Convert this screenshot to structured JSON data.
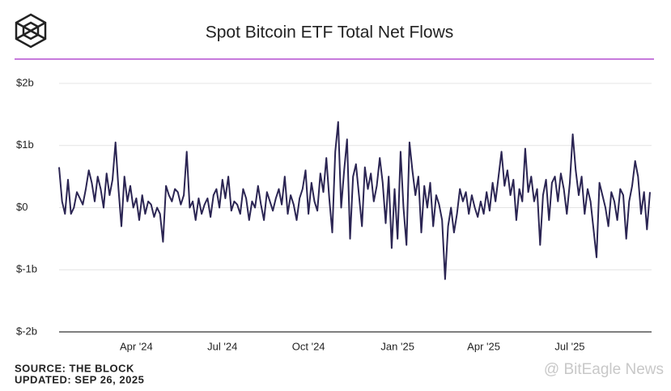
{
  "chart_data": {
    "type": "line",
    "title": "Spot Bitcoin ETF Total Net Flows",
    "source": "SOURCE: THE BLOCK",
    "updated": "UPDATED: SEP 26, 2025",
    "watermark": "@ BitEagle News",
    "color": "#2b2553",
    "grid": true,
    "ylim": [
      -2,
      2
    ],
    "yticks": [
      {
        "value": 2,
        "label": "$2b"
      },
      {
        "value": 1,
        "label": "$1b"
      },
      {
        "value": 0,
        "label": "$0"
      },
      {
        "value": -1,
        "label": "$-1b"
      },
      {
        "value": -2,
        "label": "$-2b"
      }
    ],
    "categories": [
      null,
      null,
      null,
      null,
      null,
      null,
      null,
      null,
      null,
      null,
      null,
      null,
      null,
      null,
      null,
      null,
      null,
      null,
      null,
      null,
      null,
      null,
      null,
      null,
      null,
      null,
      "Apr '24",
      null,
      null,
      null,
      null,
      null,
      null,
      null,
      null,
      null,
      null,
      null,
      null,
      null,
      null,
      null,
      null,
      null,
      null,
      null,
      null,
      null,
      null,
      null,
      null,
      null,
      null,
      null,
      null,
      "Jul '24",
      null,
      null,
      null,
      null,
      null,
      null,
      null,
      null,
      null,
      null,
      null,
      null,
      null,
      null,
      null,
      null,
      null,
      null,
      null,
      null,
      null,
      null,
      null,
      null,
      null,
      null,
      null,
      null,
      "Oct '24",
      null,
      null,
      null,
      null,
      null,
      null,
      null,
      null,
      null,
      null,
      null,
      null,
      null,
      null,
      null,
      null,
      null,
      null,
      null,
      null,
      null,
      null,
      null,
      null,
      null,
      null,
      null,
      null,
      null,
      "Jan '25",
      null,
      null,
      null,
      null,
      null,
      null,
      null,
      null,
      null,
      null,
      null,
      null,
      null,
      null,
      null,
      null,
      null,
      null,
      null,
      null,
      null,
      null,
      null,
      null,
      null,
      null,
      null,
      null,
      "Apr '25",
      null,
      null,
      null,
      null,
      null,
      null,
      null,
      null,
      null,
      null,
      null,
      null,
      null,
      null,
      null,
      null,
      null,
      null,
      null,
      null,
      null,
      null,
      null,
      null,
      null,
      null,
      null,
      null,
      "Jul '25",
      null,
      null,
      null,
      null,
      null,
      null,
      null,
      null,
      null,
      null,
      null,
      null,
      null,
      null,
      null,
      null,
      null,
      null,
      null,
      null,
      null,
      null,
      null,
      null,
      null,
      null,
      null
    ],
    "values": [
      0.65,
      0.1,
      -0.1,
      0.45,
      -0.1,
      0.0,
      0.25,
      0.15,
      0.05,
      0.3,
      0.6,
      0.4,
      0.1,
      0.5,
      0.3,
      0.0,
      0.55,
      0.2,
      0.45,
      1.05,
      0.3,
      -0.3,
      0.5,
      0.1,
      0.35,
      0.0,
      0.15,
      -0.2,
      0.2,
      -0.1,
      0.1,
      0.05,
      -0.15,
      0.0,
      -0.1,
      -0.55,
      0.35,
      0.2,
      0.1,
      0.3,
      0.25,
      0.05,
      0.2,
      0.9,
      0.0,
      0.1,
      -0.2,
      0.15,
      -0.1,
      0.05,
      0.15,
      -0.15,
      0.2,
      0.3,
      0.0,
      0.45,
      0.15,
      0.5,
      -0.05,
      0.1,
      0.05,
      -0.1,
      0.3,
      0.15,
      -0.2,
      0.1,
      0.0,
      0.35,
      0.05,
      -0.2,
      0.25,
      0.1,
      -0.05,
      0.15,
      0.3,
      0.05,
      0.5,
      -0.1,
      0.2,
      0.05,
      -0.2,
      0.15,
      0.3,
      0.6,
      -0.1,
      0.4,
      0.1,
      -0.05,
      0.55,
      0.25,
      0.8,
      0.15,
      -0.4,
      0.9,
      1.38,
      0.0,
      0.6,
      1.1,
      -0.5,
      0.5,
      0.7,
      0.2,
      -0.3,
      0.65,
      0.3,
      0.55,
      0.1,
      0.35,
      0.8,
      0.4,
      -0.25,
      0.5,
      -0.65,
      0.3,
      -0.5,
      0.9,
      0.0,
      -0.6,
      1.05,
      0.6,
      0.2,
      0.5,
      -0.4,
      0.35,
      0.0,
      0.4,
      -0.3,
      0.2,
      0.05,
      -0.2,
      -1.15,
      -0.3,
      0.0,
      -0.4,
      -0.1,
      0.3,
      0.1,
      0.25,
      -0.1,
      0.2,
      0.0,
      -0.15,
      0.1,
      -0.1,
      0.25,
      -0.05,
      0.4,
      0.1,
      0.5,
      0.9,
      0.35,
      0.6,
      0.2,
      0.45,
      -0.2,
      0.3,
      0.1,
      0.95,
      0.25,
      0.5,
      0.1,
      0.3,
      -0.6,
      0.2,
      0.45,
      -0.2,
      0.4,
      0.5,
      0.1,
      0.55,
      0.3,
      -0.1,
      0.4,
      1.18,
      0.6,
      0.2,
      0.5,
      -0.1,
      0.3,
      0.1,
      -0.35,
      -0.8,
      0.4,
      0.2,
      0.0,
      -0.3,
      0.25,
      0.1,
      -0.2,
      0.3,
      0.2,
      -0.5,
      0.1,
      0.35,
      0.75,
      0.5,
      -0.1,
      0.25,
      -0.35,
      0.25
    ]
  }
}
